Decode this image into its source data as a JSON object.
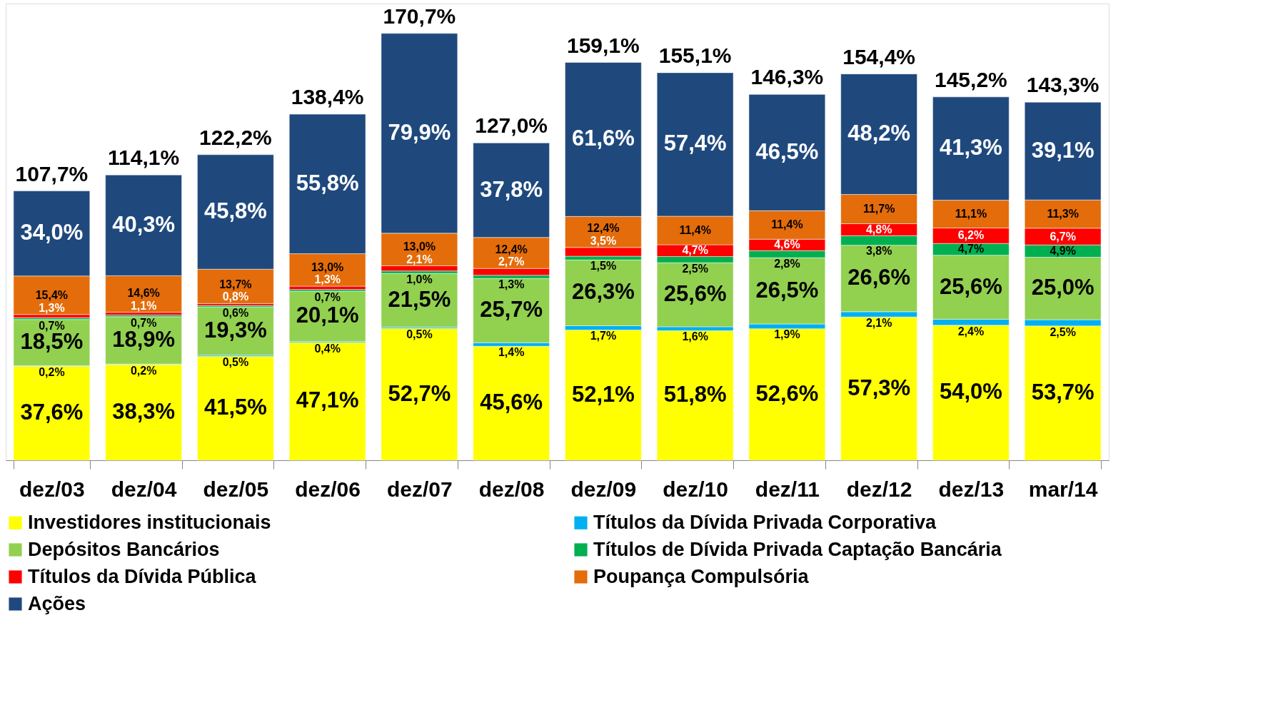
{
  "chart_data": {
    "type": "bar",
    "stacked": true,
    "legend": "bottom",
    "categories": [
      "dez/03",
      "dez/04",
      "dez/05",
      "dez/06",
      "dez/07",
      "dez/08",
      "dez/09",
      "dez/10",
      "dez/11",
      "dez/12",
      "dez/13",
      "mar/14"
    ],
    "series": [
      {
        "name": "Investidores institucionais",
        "color": "#ffff00",
        "values": [
          37.6,
          38.3,
          41.5,
          47.1,
          52.7,
          45.6,
          52.1,
          51.8,
          52.6,
          57.3,
          54.0,
          53.7
        ],
        "value_labels": [
          "37,6%",
          "38,3%",
          "41,5%",
          "47,1%",
          "52,7%",
          "45,6%",
          "52,1%",
          "51,8%",
          "52,6%",
          "57,3%",
          "54,0%",
          "53,7%"
        ]
      },
      {
        "name": "Títulos da Dívida Privada Corporativa",
        "color": "#00b0f0",
        "values": [
          0.2,
          0.2,
          0.5,
          0.4,
          0.5,
          1.4,
          1.7,
          1.6,
          1.9,
          2.1,
          2.4,
          2.5
        ],
        "value_labels": [
          "0,2%",
          "0,2%",
          "0,5%",
          "0,4%",
          "0,5%",
          "1,4%",
          "1,7%",
          "1,6%",
          "1,9%",
          "2,1%",
          "2,4%",
          "2,5%"
        ]
      },
      {
        "name": "Depósitos Bancários",
        "color": "#92d050",
        "values": [
          18.5,
          18.9,
          19.3,
          20.1,
          21.5,
          25.7,
          26.3,
          25.6,
          26.5,
          26.6,
          25.6,
          25.0
        ],
        "value_labels": [
          "18,5%",
          "18,9%",
          "19,3%",
          "20,1%",
          "21,5%",
          "25,7%",
          "26,3%",
          "25,6%",
          "26,5%",
          "26,6%",
          "25,6%",
          "25,0%"
        ]
      },
      {
        "name": "Títulos de Dívida Privada Captação Bancária",
        "color": "#00b050",
        "values": [
          0.7,
          0.7,
          0.6,
          0.7,
          1.0,
          1.3,
          1.5,
          2.5,
          2.8,
          3.8,
          4.7,
          4.9
        ],
        "value_labels": [
          "0,7%",
          "0,7%",
          "0,6%",
          "0,7%",
          "1,0%",
          "1,3%",
          "1,5%",
          "2,5%",
          "2,8%",
          "3,8%",
          "4,7%",
          "4,9%"
        ]
      },
      {
        "name": "Títulos da Dívida Pública",
        "color": "#ff0000",
        "values": [
          1.3,
          1.1,
          0.8,
          1.3,
          2.1,
          2.7,
          3.5,
          4.7,
          4.6,
          4.8,
          6.2,
          6.7
        ],
        "value_labels": [
          "1,3%",
          "1,1%",
          "0,8%",
          "1,3%",
          "2,1%",
          "2,7%",
          "3,5%",
          "4,7%",
          "4,6%",
          "4,8%",
          "6,2%",
          "6,7%"
        ]
      },
      {
        "name": "Poupança Compulsória",
        "color": "#e46c0a",
        "values": [
          15.4,
          14.6,
          13.7,
          13.0,
          13.0,
          12.4,
          12.4,
          11.4,
          11.4,
          11.7,
          11.1,
          11.3
        ],
        "value_labels": [
          "15,4%",
          "14,6%",
          "13,7%",
          "13,0%",
          "13,0%",
          "12,4%",
          "12,4%",
          "11,4%",
          "11,4%",
          "11,7%",
          "11,1%",
          "11,3%"
        ]
      },
      {
        "name": "Ações",
        "color": "#1f497d",
        "values": [
          34.0,
          40.3,
          45.8,
          55.8,
          79.9,
          37.8,
          61.6,
          57.4,
          46.5,
          48.2,
          41.3,
          39.1
        ],
        "value_labels": [
          "34,0%",
          "40,3%",
          "45,8%",
          "55,8%",
          "79,9%",
          "37,8%",
          "61,6%",
          "57,4%",
          "46,5%",
          "48,2%",
          "41,3%",
          "39,1%"
        ]
      }
    ],
    "totals": [
      "107,7%",
      "114,1%",
      "122,2%",
      "138,4%",
      "170,7%",
      "127,0%",
      "159,1%",
      "155,1%",
      "146,3%",
      "154,4%",
      "145,2%",
      "143,3%"
    ]
  }
}
